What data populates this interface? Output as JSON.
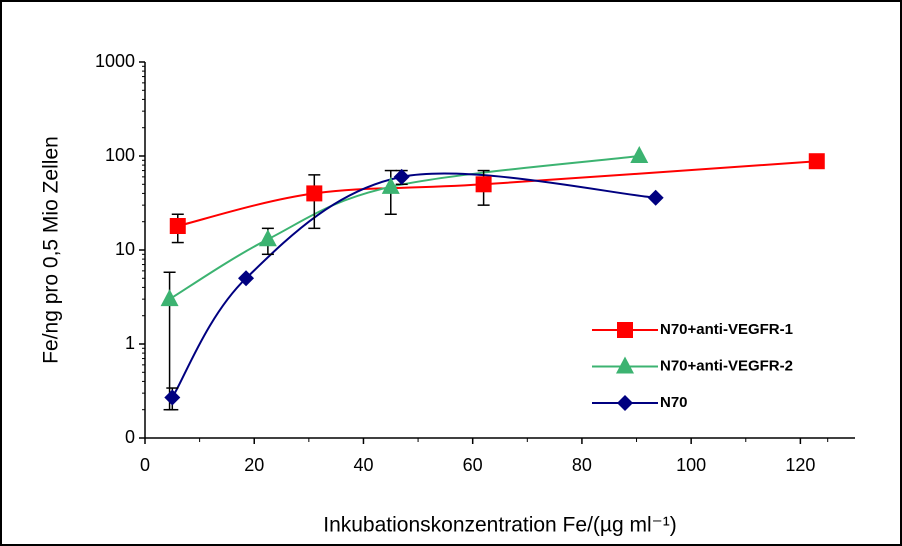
{
  "chart_data": {
    "type": "line",
    "xlabel": "Inkubationskonzentration Fe/(µg ml⁻¹)",
    "ylabel": "Fe/ng pro 0,5 Mio Zellen",
    "xlim": [
      0,
      130
    ],
    "xticks": [
      0,
      20,
      40,
      60,
      80,
      100,
      120
    ],
    "ylim": [
      0.1,
      1000
    ],
    "log_y": true,
    "yticks": [
      {
        "value": 0.1,
        "label": "0"
      },
      1,
      10,
      100,
      1000
    ],
    "legend": "lower right",
    "series": [
      {
        "name": "N70+anti-VEGFR-1",
        "color": "#ff0000",
        "marker": "square",
        "x": [
          6,
          31,
          62,
          123
        ],
        "values": [
          18,
          40,
          50,
          88
        ],
        "errors": [
          6,
          23,
          20,
          null
        ]
      },
      {
        "name": "N70+anti-VEGFR-2",
        "color": "#3cb371",
        "marker": "triangle",
        "x": [
          4.5,
          22.5,
          45,
          90.5
        ],
        "values": [
          3,
          13,
          47,
          100
        ],
        "errors": [
          2.8,
          4,
          23,
          null
        ]
      },
      {
        "name": "N70",
        "color": "#000080",
        "marker": "diamond",
        "x": [
          5,
          18.5,
          47,
          93.5
        ],
        "values": [
          0.27,
          5,
          60,
          36
        ],
        "errors": [
          0.07,
          null,
          10,
          null
        ]
      }
    ]
  }
}
